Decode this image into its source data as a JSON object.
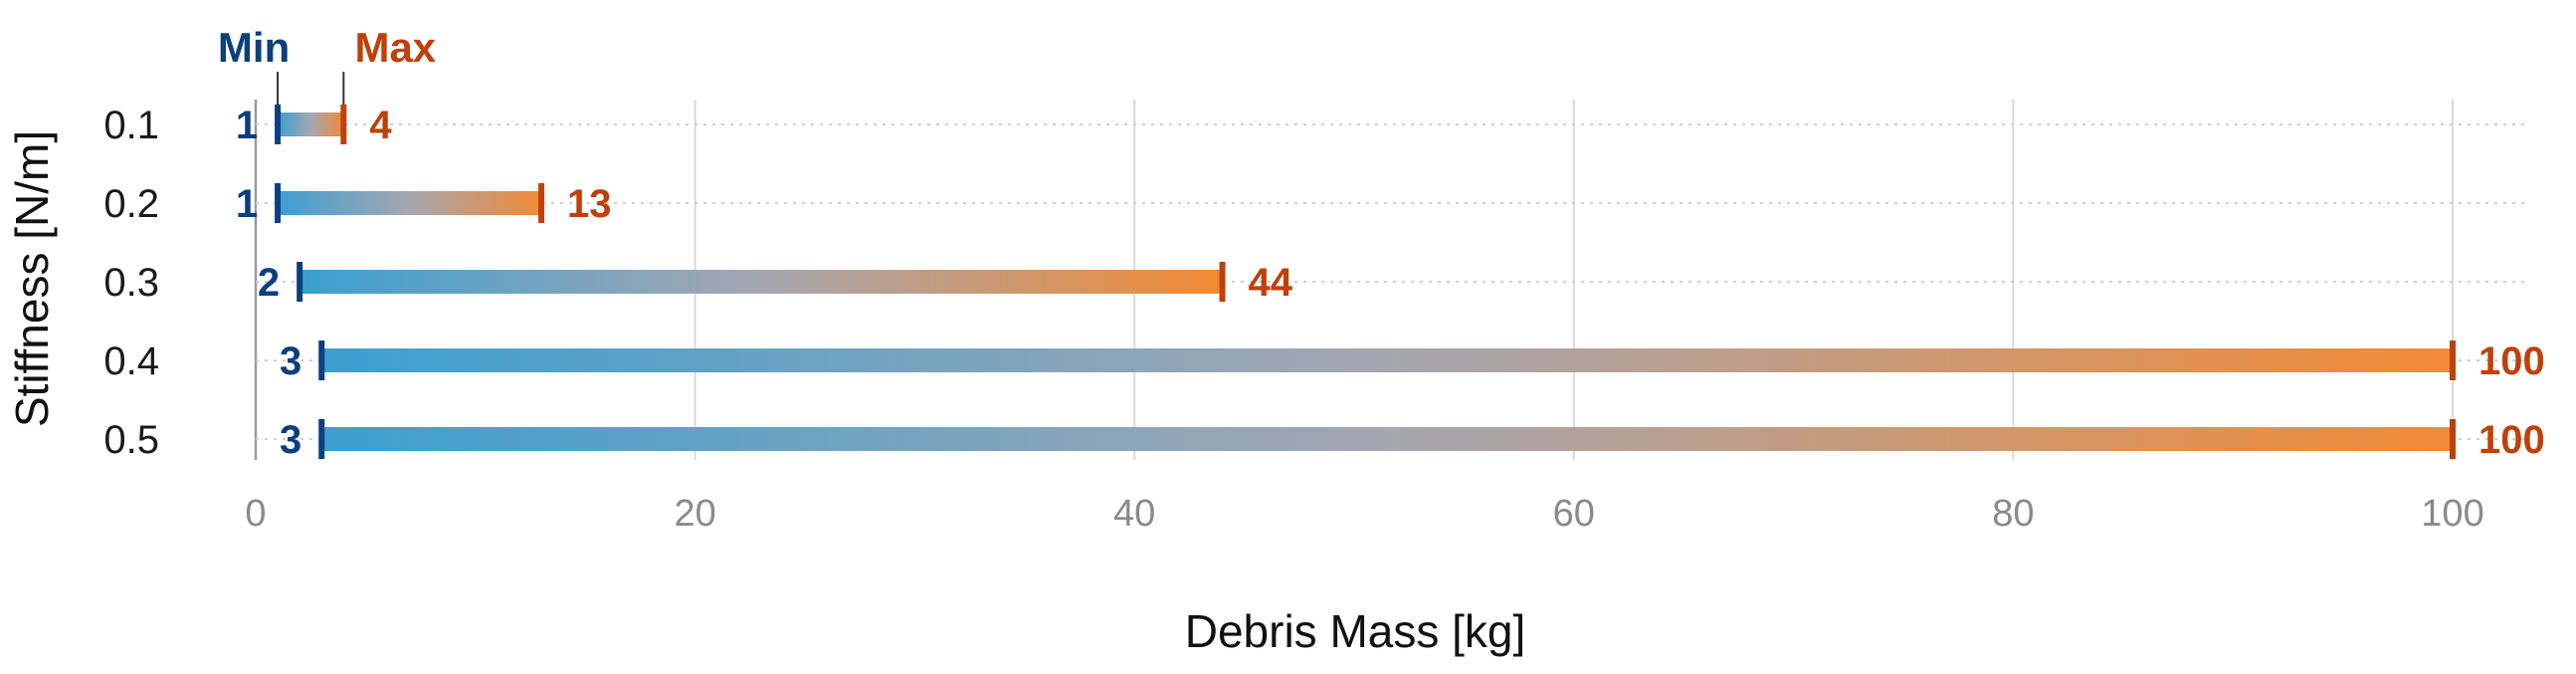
{
  "colors": {
    "min": "#0b3f7d",
    "max": "#c0400a",
    "bar_start": "#3b9fd1",
    "bar_mid": "#a5a7b1",
    "bar_end": "#f28a35",
    "grid": "#d9d9d9",
    "tick": "#8a8a8a"
  },
  "chart_data": {
    "type": "bar",
    "subtype": "range-dumbbell-horizontal",
    "orientation": "horizontal",
    "xlabel": "Debris Mass [kg]",
    "ylabel": "Stiffness [N/m]",
    "xlim": [
      0,
      100
    ],
    "xticks": [
      0,
      20,
      40,
      60,
      80,
      100
    ],
    "categories": [
      "0.1",
      "0.2",
      "0.3",
      "0.4",
      "0.5"
    ],
    "legend": {
      "min_label": "Min",
      "max_label": "Max",
      "placement": "top-left"
    },
    "series": [
      {
        "name": "Min",
        "values": [
          1,
          1,
          2,
          3,
          3
        ]
      },
      {
        "name": "Max",
        "values": [
          4,
          13,
          44,
          100,
          100
        ]
      }
    ],
    "grid": {
      "vertical": true,
      "horizontal_dotted": true
    }
  }
}
